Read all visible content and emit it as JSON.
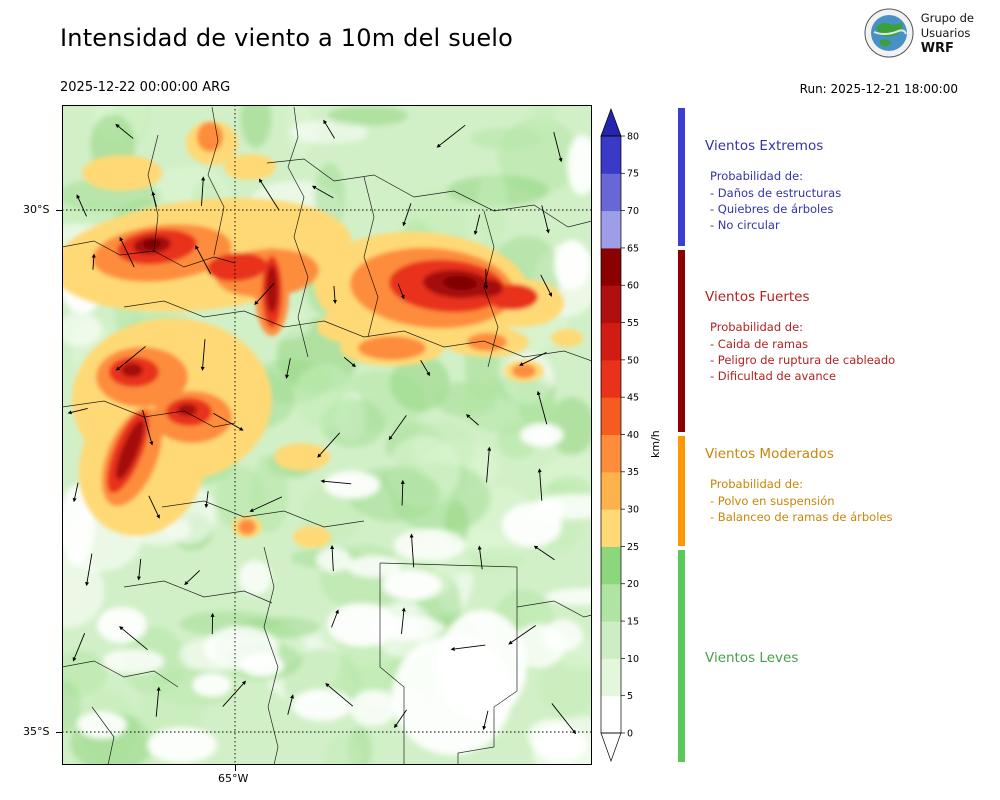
{
  "header": {
    "title": "Intensidad de viento a 10m del suelo",
    "valid_time": "2025-12-22 00:00:00 ARG",
    "run_label": "Run: 2025-12-21 18:00:00",
    "logo": {
      "line1": "Grupo de",
      "line2": "Usuarios",
      "line3": "WRF"
    }
  },
  "map": {
    "lat_labels": [
      "30°S",
      "35°S"
    ],
    "lon_label": "65°W"
  },
  "colorbar": {
    "unit": "km/h",
    "max": 80,
    "ticks": [
      0,
      5,
      10,
      15,
      20,
      25,
      30,
      35,
      40,
      45,
      50,
      55,
      60,
      65,
      70,
      75,
      80
    ],
    "segments": [
      {
        "from": 0,
        "to": 5,
        "color": "#ffffff"
      },
      {
        "from": 5,
        "to": 10,
        "color": "#e4f7dc"
      },
      {
        "from": 10,
        "to": 15,
        "color": "#cdeec3"
      },
      {
        "from": 15,
        "to": 20,
        "color": "#b0e4a3"
      },
      {
        "from": 20,
        "to": 25,
        "color": "#8cd77c"
      },
      {
        "from": 25,
        "to": 30,
        "color": "#fed976"
      },
      {
        "from": 30,
        "to": 35,
        "color": "#feb24c"
      },
      {
        "from": 35,
        "to": 40,
        "color": "#fd8d3c"
      },
      {
        "from": 40,
        "to": 45,
        "color": "#f65b22"
      },
      {
        "from": 45,
        "to": 50,
        "color": "#e8321a"
      },
      {
        "from": 50,
        "to": 55,
        "color": "#d01c12"
      },
      {
        "from": 55,
        "to": 60,
        "color": "#b00f0f"
      },
      {
        "from": 60,
        "to": 65,
        "color": "#8b0000"
      },
      {
        "from": 65,
        "to": 70,
        "color": "#9e9ee8"
      },
      {
        "from": 70,
        "to": 75,
        "color": "#6767d6"
      },
      {
        "from": 75,
        "to": 80,
        "color": "#3a3ac8"
      }
    ],
    "over_color": "#2424ae",
    "under_color": "#ffffff"
  },
  "legend": {
    "sections": [
      {
        "title": "Vientos Extremos",
        "text_color": "#3333aa",
        "bar_color": "#3d3dd2",
        "subtitle": "Probabilidad de:",
        "items": [
          "- Daños de estructuras",
          "- Quiebres de árboles",
          "- No circular"
        ]
      },
      {
        "title": "Vientos Fuertes",
        "text_color": "#b22222",
        "bar_color": "#8b0000",
        "subtitle": "Probabilidad de:",
        "items": [
          "- Caida de ramas",
          "- Peligro de ruptura de cableado",
          "- Dificultad de avance"
        ]
      },
      {
        "title": "Vientos Moderados",
        "text_color": "#c8860a",
        "bar_color": "#ff9800",
        "subtitle": "Probabilidad de:",
        "items": [
          "- Polvo en suspensión",
          "- Balanceo de ramas de árboles"
        ]
      },
      {
        "title": "Vientos Leves",
        "text_color": "#4a9e4a",
        "bar_color": "#5ac85a",
        "subtitle": "",
        "items": []
      }
    ]
  }
}
